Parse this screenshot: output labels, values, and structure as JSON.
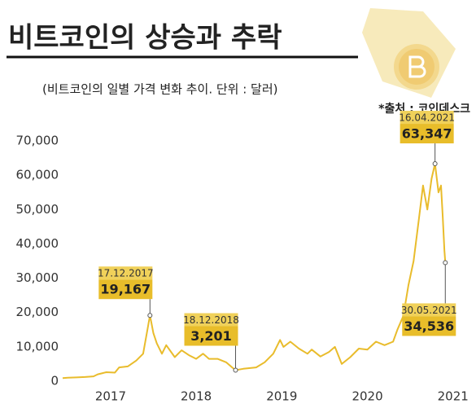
{
  "chart_data": {
    "type": "line",
    "title": "비트코인의 상승과 추락",
    "subtitle": "(비트코인의 일별 가격 변화 추이. 단위 :  달러)",
    "source": "*출처 :  코인데스크",
    "x": [
      2016.94,
      2017.0,
      2017.1,
      2017.2,
      2017.3,
      2017.35,
      2017.45,
      2017.55,
      2017.6,
      2017.7,
      2017.8,
      2017.88,
      2017.93,
      2017.96,
      2018.0,
      2018.04,
      2018.1,
      2018.15,
      2018.25,
      2018.33,
      2018.42,
      2018.5,
      2018.58,
      2018.65,
      2018.75,
      2018.85,
      2018.92,
      2018.96,
      2019.05,
      2019.2,
      2019.3,
      2019.4,
      2019.48,
      2019.52,
      2019.6,
      2019.7,
      2019.8,
      2019.85,
      2019.95,
      2020.05,
      2020.12,
      2020.2,
      2020.3,
      2020.4,
      2020.5,
      2020.6,
      2020.7,
      2020.8,
      2020.85,
      2020.92,
      2020.98,
      2021.04,
      2021.1,
      2021.15,
      2021.2,
      2021.25,
      2021.29,
      2021.33,
      2021.36,
      2021.38,
      2021.4,
      2021.41
    ],
    "series": [
      {
        "name": "비트코인",
        "color": "#e9bc2c",
        "values": [
          900,
          1000,
          1100,
          1200,
          1400,
          2000,
          2600,
          2500,
          4000,
          4300,
          6000,
          8000,
          15000,
          19167,
          14000,
          11000,
          8000,
          10500,
          7000,
          9000,
          7500,
          6500,
          8000,
          6500,
          6500,
          5500,
          4000,
          3201,
          3600,
          4000,
          5500,
          8000,
          12000,
          10000,
          11500,
          9500,
          8000,
          9200,
          7200,
          8500,
          10000,
          5000,
          7000,
          9500,
          9200,
          11500,
          10500,
          11500,
          15000,
          19000,
          28000,
          35000,
          47000,
          57000,
          50000,
          59000,
          63347,
          55000,
          57000,
          48000,
          38000,
          34536
        ]
      }
    ],
    "xlim": [
      2016.94,
      2021.55
    ],
    "ylim": [
      0,
      70000
    ],
    "xticks": [
      {
        "value": 2017.5,
        "label": "2017"
      },
      {
        "value": 2018.5,
        "label": "2018"
      },
      {
        "value": 2019.5,
        "label": "2019"
      },
      {
        "value": 2020.5,
        "label": "2020"
      },
      {
        "value": 2021.5,
        "label": "2021"
      }
    ],
    "yticks": [
      0,
      {
        "value": 10000,
        "label": "10,000"
      },
      {
        "value": 20000,
        "label": "20,000"
      },
      {
        "value": 30000,
        "label": "30,000"
      },
      {
        "value": 40000,
        "label": "40,000"
      },
      {
        "value": 50000,
        "label": "50,000"
      },
      {
        "value": 60000,
        "label": "60,000"
      },
      {
        "value": 70000,
        "label": "70,000"
      }
    ],
    "grid": false,
    "annotations": [
      {
        "x": 2017.96,
        "date": "17.12.2017",
        "value": 19167,
        "value_label": "19,167"
      },
      {
        "x": 2018.96,
        "date": "18.12.2018",
        "value": 3201,
        "value_label": "3,201"
      },
      {
        "x": 2021.29,
        "date": "16.04.2021",
        "value": 63347,
        "value_label": "63,347"
      },
      {
        "x": 2021.41,
        "date": "30.05.2021",
        "value": 34536,
        "value_label": "34,536"
      }
    ]
  }
}
